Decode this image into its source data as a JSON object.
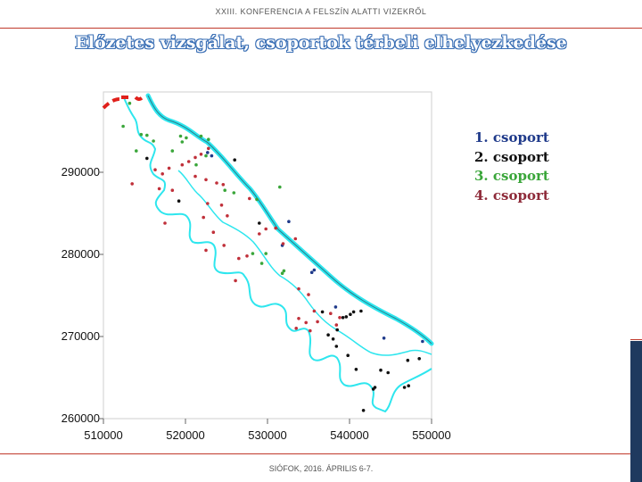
{
  "header": {
    "conference": "XXIII. KONFERENCIA A FELSZÍN ALATTI VIZEKRŐL"
  },
  "title": "Előzetes vizsgálat, csoportok térbeli elhelyezkedése",
  "footer": {
    "location_date": "SIÓFOK, 2016. ÁPRILIS 6-7."
  },
  "legend": {
    "items": [
      {
        "number": "1.",
        "label": "csoport",
        "color": "#1f3a8a"
      },
      {
        "number": "2.",
        "label": "csoport",
        "color": "#111111"
      },
      {
        "number": "3.",
        "label": "csoport",
        "color": "#3aa63a"
      },
      {
        "number": "4.",
        "label": "csoport",
        "color": "#8e2b3a"
      }
    ]
  },
  "colors": {
    "river": "#2ee6ee",
    "accent_line": "#c0392b",
    "side_bar": "#1f3a5f"
  },
  "chart_data": {
    "type": "scatter",
    "title": "",
    "xlabel": "",
    "ylabel": "",
    "xlim": [
      510000,
      550000
    ],
    "ylim": [
      260000,
      298500
    ],
    "grid": false,
    "x_ticks": [
      "510000",
      "520000",
      "530000",
      "540000",
      "550000"
    ],
    "y_ticks": [
      "260000",
      "270000",
      "280000",
      "290000"
    ],
    "series": [
      {
        "color": "#1f3a8a",
        "points": [
          [
            522700,
            292400
          ],
          [
            523200,
            292000
          ],
          [
            531800,
            281100
          ],
          [
            532600,
            284000
          ],
          [
            535400,
            277800
          ],
          [
            535700,
            278100
          ],
          [
            538300,
            273600
          ],
          [
            544200,
            269800
          ],
          [
            548900,
            269400
          ]
        ]
      },
      {
        "color": "#111111",
        "points": [
          [
            515300,
            291700
          ],
          [
            519200,
            286500
          ],
          [
            526000,
            291500
          ],
          [
            529000,
            283800
          ],
          [
            536700,
            273000
          ],
          [
            537400,
            270200
          ],
          [
            538000,
            269700
          ],
          [
            538500,
            270800
          ],
          [
            538400,
            268800
          ],
          [
            539200,
            272300
          ],
          [
            539600,
            272400
          ],
          [
            540100,
            272700
          ],
          [
            540500,
            273000
          ],
          [
            541400,
            273100
          ],
          [
            539800,
            267700
          ],
          [
            540800,
            266000
          ],
          [
            541700,
            261000
          ],
          [
            542900,
            263600
          ],
          [
            543100,
            263800
          ],
          [
            543800,
            265900
          ],
          [
            544700,
            265600
          ],
          [
            547100,
            267100
          ],
          [
            548500,
            267300
          ],
          [
            546700,
            263800
          ],
          [
            547200,
            264000
          ]
        ]
      },
      {
        "color": "#3aa63a",
        "points": [
          [
            512400,
            295600
          ],
          [
            513200,
            298400
          ],
          [
            514000,
            292600
          ],
          [
            514600,
            294600
          ],
          [
            515300,
            294500
          ],
          [
            516100,
            293800
          ],
          [
            518400,
            292600
          ],
          [
            519400,
            294400
          ],
          [
            519600,
            293700
          ],
          [
            520100,
            294200
          ],
          [
            521300,
            290900
          ],
          [
            521900,
            294400
          ],
          [
            522500,
            292000
          ],
          [
            522800,
            294000
          ],
          [
            524800,
            287800
          ],
          [
            525900,
            287500
          ],
          [
            528700,
            286700
          ],
          [
            528200,
            280100
          ],
          [
            529300,
            278900
          ],
          [
            529800,
            280100
          ],
          [
            531500,
            288200
          ],
          [
            532000,
            278000
          ],
          [
            531800,
            277700
          ]
        ]
      },
      {
        "color": "#c0303a",
        "points": [
          [
            513500,
            288600
          ],
          [
            516300,
            290300
          ],
          [
            517200,
            289800
          ],
          [
            516800,
            288000
          ],
          [
            517500,
            283800
          ],
          [
            518000,
            290500
          ],
          [
            518400,
            287800
          ],
          [
            519600,
            290900
          ],
          [
            520400,
            291300
          ],
          [
            521200,
            291800
          ],
          [
            521900,
            292200
          ],
          [
            522800,
            292900
          ],
          [
            521200,
            289500
          ],
          [
            522500,
            289100
          ],
          [
            523800,
            288700
          ],
          [
            524600,
            288500
          ],
          [
            522200,
            284500
          ],
          [
            522700,
            286200
          ],
          [
            522500,
            280500
          ],
          [
            523400,
            282700
          ],
          [
            524700,
            281100
          ],
          [
            524400,
            286000
          ],
          [
            525100,
            284700
          ],
          [
            526100,
            276800
          ],
          [
            526500,
            279500
          ],
          [
            527500,
            279800
          ],
          [
            527800,
            286800
          ],
          [
            529000,
            282500
          ],
          [
            529800,
            283100
          ],
          [
            531000,
            283200
          ],
          [
            531900,
            281300
          ],
          [
            533400,
            281900
          ],
          [
            533800,
            275800
          ],
          [
            535000,
            275100
          ],
          [
            535700,
            273100
          ],
          [
            534700,
            271700
          ],
          [
            536100,
            271800
          ],
          [
            533800,
            272200
          ],
          [
            533500,
            271000
          ],
          [
            535200,
            270700
          ],
          [
            537700,
            272800
          ],
          [
            538800,
            272300
          ],
          [
            538400,
            271400
          ]
        ]
      }
    ]
  }
}
